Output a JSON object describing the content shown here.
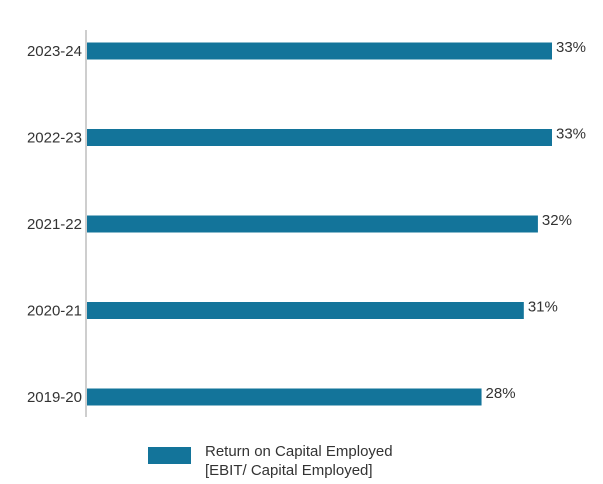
{
  "chart_data": {
    "type": "bar",
    "orientation": "horizontal",
    "categories": [
      "2023-24",
      "2022-23",
      "2021-22",
      "2020-21",
      "2019-20"
    ],
    "series": [
      {
        "name": "Return on Capital Employed [EBIT/ Capital Employed]",
        "values": [
          33,
          33,
          32,
          31,
          28
        ],
        "data_labels": [
          "33%",
          "33%",
          "32%",
          "31%",
          "28%"
        ]
      }
    ],
    "xlim": [
      0,
      35
    ],
    "grid": false,
    "legend_position": "bottom"
  },
  "legend": {
    "line1": "Return on Capital Employed",
    "line2": "[EBIT/ Capital Employed]"
  },
  "colors": {
    "bar": "#13749a",
    "axis": "#9e9e9e",
    "text": "#333333"
  }
}
